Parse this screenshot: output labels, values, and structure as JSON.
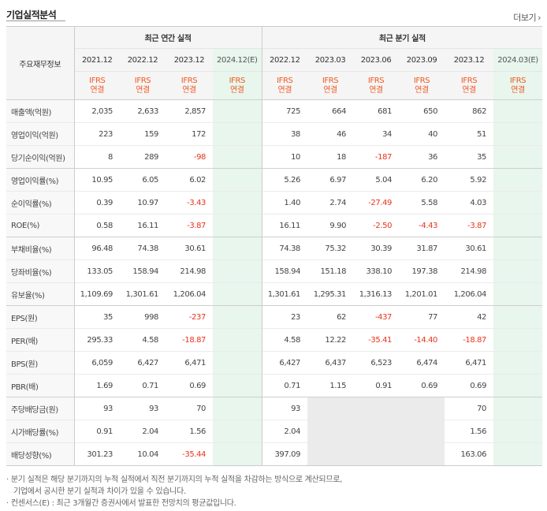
{
  "header": {
    "title": "기업실적분석",
    "more_label": "더보기",
    "more_icon": "chevron-right-icon"
  },
  "table": {
    "row_header": "주요재무정보",
    "groups": [
      "최근 연간 실적",
      "최근 분기 실적"
    ],
    "annual_periods": [
      "2021.12",
      "2022.12",
      "2023.12",
      "2024.12(E)"
    ],
    "quarter_periods": [
      "2022.12",
      "2023.03",
      "2023.06",
      "2023.09",
      "2023.12",
      "2024.03(E)"
    ],
    "basis_line1": "IFRS",
    "basis_line2": "연결",
    "rows": [
      {
        "label": "매출액(억원)",
        "values": [
          "2,035",
          "2,633",
          "2,857",
          "",
          "725",
          "664",
          "681",
          "650",
          "862",
          ""
        ]
      },
      {
        "label": "영업이익(억원)",
        "values": [
          "223",
          "159",
          "172",
          "",
          "38",
          "46",
          "34",
          "40",
          "51",
          ""
        ]
      },
      {
        "label": "당기순이익(억원)",
        "values": [
          "8",
          "289",
          "-98",
          "",
          "10",
          "18",
          "-187",
          "36",
          "35",
          ""
        ]
      },
      {
        "label": "영업이익률(%)",
        "values": [
          "10.95",
          "6.05",
          "6.02",
          "",
          "5.26",
          "6.97",
          "5.04",
          "6.20",
          "5.92",
          ""
        ]
      },
      {
        "label": "순이익률(%)",
        "values": [
          "0.39",
          "10.97",
          "-3.43",
          "",
          "1.40",
          "2.74",
          "-27.49",
          "5.58",
          "4.03",
          ""
        ]
      },
      {
        "label": "ROE(%)",
        "values": [
          "0.58",
          "16.11",
          "-3.87",
          "",
          "16.11",
          "9.90",
          "-2.50",
          "-4.43",
          "-3.87",
          ""
        ]
      },
      {
        "label": "부채비율(%)",
        "values": [
          "96.48",
          "74.38",
          "30.61",
          "",
          "74.38",
          "75.32",
          "30.39",
          "31.87",
          "30.61",
          ""
        ]
      },
      {
        "label": "당좌비율(%)",
        "values": [
          "133.05",
          "158.94",
          "214.98",
          "",
          "158.94",
          "151.18",
          "338.10",
          "197.38",
          "214.98",
          ""
        ]
      },
      {
        "label": "유보율(%)",
        "values": [
          "1,109.69",
          "1,301.61",
          "1,206.04",
          "",
          "1,301.61",
          "1,295.31",
          "1,316.13",
          "1,201.01",
          "1,206.04",
          ""
        ]
      },
      {
        "label": "EPS(원)",
        "values": [
          "35",
          "998",
          "-237",
          "",
          "23",
          "62",
          "-437",
          "77",
          "42",
          ""
        ]
      },
      {
        "label": "PER(배)",
        "values": [
          "295.33",
          "4.58",
          "-18.87",
          "",
          "4.58",
          "12.22",
          "-35.41",
          "-14.40",
          "-18.87",
          ""
        ]
      },
      {
        "label": "BPS(원)",
        "values": [
          "6,059",
          "6,427",
          "6,471",
          "",
          "6,427",
          "6,437",
          "6,523",
          "6,474",
          "6,471",
          ""
        ]
      },
      {
        "label": "PBR(배)",
        "values": [
          "1.69",
          "0.71",
          "0.69",
          "",
          "0.71",
          "1.15",
          "0.91",
          "0.69",
          "0.69",
          ""
        ]
      },
      {
        "label": "주당배당금(원)",
        "values": [
          "93",
          "93",
          "70",
          "",
          "93",
          "",
          "",
          "",
          "70",
          ""
        ]
      },
      {
        "label": "시가배당률(%)",
        "values": [
          "0.91",
          "2.04",
          "1.56",
          "",
          "2.04",
          "",
          "",
          "",
          "1.56",
          ""
        ]
      },
      {
        "label": "배당성향(%)",
        "values": [
          "301.23",
          "10.04",
          "-35.44",
          "",
          "397.09",
          "",
          "",
          "",
          "163.06",
          ""
        ]
      }
    ]
  },
  "notes": [
    "분기 실적은 해당 분기까지의 누적 실적에서 직전 분기까지의 누적 실적을 차감하는 방식으로 계산되므로,",
    "기업에서 공시한 분기 실적과 차이가 있을 수 있습니다.",
    "컨센서스(E) : 최근 3개월간 증권사에서 발표한 전망치의 평균값입니다."
  ],
  "colors": {
    "accent_orange": "#f15a22",
    "negative_red": "#e8331c",
    "estimate_bg": "#e8f6ed",
    "header_bg": "#f5f5f5"
  }
}
